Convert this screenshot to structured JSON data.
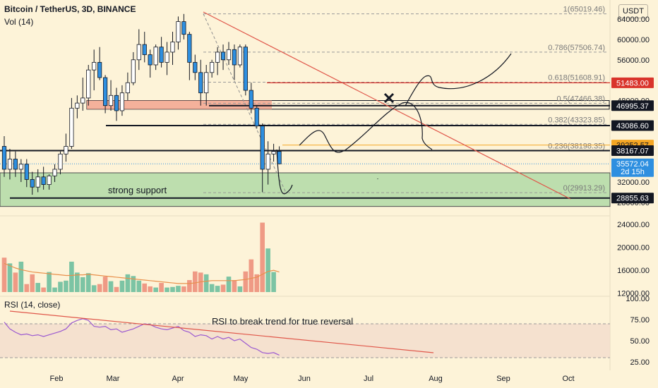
{
  "header": {
    "title": "Bitcoin / TetherUS, 3D, BINANCE",
    "vol_label": "Vol (14)",
    "rsi_label": "RSI (14, close)",
    "currency_button": "USDT"
  },
  "annotations": {
    "support_text": "strong support",
    "rsi_text": "RSI to break trend for true reversal"
  },
  "chart_data": [
    {
      "type": "candlestick",
      "title": "Bitcoin / TetherUS, 3D, BINANCE",
      "x_tick_labels": [
        "Feb",
        "Mar",
        "Apr",
        "May",
        "Jun",
        "Jul",
        "Aug",
        "Sep",
        "Oct"
      ],
      "y_tick_labels": [
        "64000.00",
        "60000.00",
        "56000.00",
        "48000.00",
        "32000.00",
        "28000.00"
      ],
      "price_labels": [
        {
          "value": 51483.0,
          "text": "51483.00",
          "color": "#d9342b",
          "text_color": "#ffffff"
        },
        {
          "value": 46995.37,
          "text": "46995.37",
          "color": "#131722",
          "text_color": "#ffffff"
        },
        {
          "value": 43086.6,
          "text": "43086.60",
          "color": "#131722",
          "text_color": "#ffffff"
        },
        {
          "value": 39252.57,
          "text": "39252.57",
          "color": "#f5a623",
          "text_color": "#131722"
        },
        {
          "value": 38167.07,
          "text": "38167.07",
          "color": "#131722",
          "text_color": "#ffffff"
        },
        {
          "value": 35572.04,
          "text": "35572.04",
          "color": "#2e8fe0",
          "text_color": "#ffffff",
          "sub": "2d 15h"
        },
        {
          "value": 28855.63,
          "text": "28855.63",
          "color": "#131722",
          "text_color": "#ffffff"
        }
      ],
      "fib_levels": [
        {
          "ratio": "1",
          "value": 65019.46,
          "label": "1(65019.46)"
        },
        {
          "ratio": "0.786",
          "value": 57506.74,
          "label": "0.786(57506.74)"
        },
        {
          "ratio": "0.618",
          "value": 51608.91,
          "label": "0.618(51608.91)"
        },
        {
          "ratio": "0.5",
          "value": 47466.38,
          "label": "0.5(47466.38)"
        },
        {
          "ratio": "0.382",
          "value": 43323.85,
          "label": "0.382(43323.85)"
        },
        {
          "ratio": "0.236",
          "value": 38198.35,
          "label": "0.236(38198.35)"
        },
        {
          "ratio": "0",
          "value": 29913.29,
          "label": "0(29913.29)"
        }
      ],
      "support_zone": [
        27200,
        33800
      ],
      "resistance_zone": [
        46300,
        48000
      ],
      "colors": {
        "up": "#ffffff",
        "down": "#2e8fe0",
        "outline": "#131722"
      },
      "candles": [
        {
          "o": 39000,
          "h": 41000,
          "l": 33000,
          "c": 34500
        },
        {
          "o": 34500,
          "h": 38500,
          "l": 32500,
          "c": 36500
        },
        {
          "o": 36500,
          "h": 38000,
          "l": 33000,
          "c": 34500
        },
        {
          "o": 34500,
          "h": 36500,
          "l": 32000,
          "c": 35500
        },
        {
          "o": 35500,
          "h": 36500,
          "l": 31000,
          "c": 32500
        },
        {
          "o": 32500,
          "h": 34000,
          "l": 29500,
          "c": 31000
        },
        {
          "o": 31000,
          "h": 34500,
          "l": 30000,
          "c": 33000
        },
        {
          "o": 33000,
          "h": 35000,
          "l": 30500,
          "c": 31500
        },
        {
          "o": 31500,
          "h": 33500,
          "l": 30500,
          "c": 33200
        },
        {
          "o": 33200,
          "h": 35500,
          "l": 32000,
          "c": 34500
        },
        {
          "o": 34500,
          "h": 38000,
          "l": 33500,
          "c": 37500
        },
        {
          "o": 37500,
          "h": 41500,
          "l": 36000,
          "c": 39000
        },
        {
          "o": 39000,
          "h": 48500,
          "l": 38500,
          "c": 46500
        },
        {
          "o": 46500,
          "h": 49000,
          "l": 44500,
          "c": 47500
        },
        {
          "o": 47500,
          "h": 52500,
          "l": 46000,
          "c": 48500
        },
        {
          "o": 48500,
          "h": 55000,
          "l": 47000,
          "c": 54000
        },
        {
          "o": 54000,
          "h": 58000,
          "l": 50000,
          "c": 55500
        },
        {
          "o": 55500,
          "h": 58500,
          "l": 52000,
          "c": 52500
        },
        {
          "o": 52500,
          "h": 53000,
          "l": 45500,
          "c": 47000
        },
        {
          "o": 47000,
          "h": 52000,
          "l": 46000,
          "c": 49000
        },
        {
          "o": 49000,
          "h": 50500,
          "l": 44000,
          "c": 46000
        },
        {
          "o": 46000,
          "h": 51000,
          "l": 45000,
          "c": 49500
        },
        {
          "o": 49500,
          "h": 53500,
          "l": 48000,
          "c": 51500
        },
        {
          "o": 51500,
          "h": 57500,
          "l": 51000,
          "c": 56000
        },
        {
          "o": 56000,
          "h": 62000,
          "l": 54000,
          "c": 59000
        },
        {
          "o": 59000,
          "h": 61500,
          "l": 55500,
          "c": 57000
        },
        {
          "o": 57000,
          "h": 58000,
          "l": 52500,
          "c": 55000
        },
        {
          "o": 55000,
          "h": 59000,
          "l": 54000,
          "c": 58500
        },
        {
          "o": 58500,
          "h": 60500,
          "l": 54500,
          "c": 55500
        },
        {
          "o": 55500,
          "h": 59500,
          "l": 53000,
          "c": 57500
        },
        {
          "o": 57500,
          "h": 61500,
          "l": 55000,
          "c": 59500
        },
        {
          "o": 59500,
          "h": 64500,
          "l": 58000,
          "c": 63500
        },
        {
          "o": 63500,
          "h": 65000,
          "l": 60000,
          "c": 61000
        },
        {
          "o": 61000,
          "h": 61500,
          "l": 52000,
          "c": 55500
        },
        {
          "o": 55500,
          "h": 57000,
          "l": 52000,
          "c": 53500
        },
        {
          "o": 53500,
          "h": 56000,
          "l": 47000,
          "c": 49500
        },
        {
          "o": 49500,
          "h": 55000,
          "l": 47000,
          "c": 53500
        },
        {
          "o": 53500,
          "h": 56000,
          "l": 52500,
          "c": 55500
        },
        {
          "o": 55500,
          "h": 58500,
          "l": 53000,
          "c": 57500
        },
        {
          "o": 57500,
          "h": 59000,
          "l": 54000,
          "c": 56000
        },
        {
          "o": 56000,
          "h": 59500,
          "l": 55000,
          "c": 58000
        },
        {
          "o": 58000,
          "h": 59000,
          "l": 52000,
          "c": 55000
        },
        {
          "o": 55000,
          "h": 59000,
          "l": 54500,
          "c": 58500
        },
        {
          "o": 58500,
          "h": 59000,
          "l": 49000,
          "c": 50000
        },
        {
          "o": 50000,
          "h": 51500,
          "l": 45500,
          "c": 46500
        },
        {
          "o": 46500,
          "h": 47000,
          "l": 42500,
          "c": 43000
        },
        {
          "o": 43000,
          "h": 43500,
          "l": 30000,
          "c": 34500
        },
        {
          "o": 34500,
          "h": 40000,
          "l": 31500,
          "c": 37500
        },
        {
          "o": 37500,
          "h": 39500,
          "l": 36000,
          "c": 38000
        },
        {
          "o": 38000,
          "h": 39000,
          "l": 35500,
          "c": 35572
        }
      ]
    },
    {
      "type": "bar",
      "title": "Vol (14)",
      "y_tick_labels": [
        "24000.00",
        "20000.00",
        "16000.00",
        "12000.00"
      ],
      "colors": {
        "up": "#7cc4a4",
        "down": "#ef9a85",
        "ma": "#e8904c"
      },
      "values": [
        18200,
        17200,
        15600,
        17500,
        13600,
        15300,
        13800,
        13000,
        15700,
        13000,
        14000,
        14200,
        17500,
        15600,
        14800,
        15500,
        13400,
        13600,
        14900,
        14100,
        13100,
        14200,
        15300,
        15000,
        14200,
        13700,
        13200,
        13000,
        13800,
        13000,
        13100,
        13300,
        13200,
        14300,
        15800,
        15600,
        15300,
        13600,
        13300,
        13500,
        14900,
        14300,
        13200,
        15800,
        17900,
        15300,
        24300,
        19800,
        15700,
        11900
      ],
      "ma": [
        17200,
        16800,
        16400,
        16100,
        15900,
        15700,
        15600,
        15500,
        15400,
        15300,
        15200,
        15100,
        15100,
        15200,
        15200,
        15300,
        15200,
        15100,
        15000,
        14900,
        14800,
        14700,
        14600,
        14500,
        14400,
        14300,
        14200,
        14100,
        14000,
        13900,
        13800,
        13700,
        13700,
        13700,
        13800,
        14000,
        14100,
        14200,
        14200,
        14200,
        14200,
        14200,
        14300,
        14400,
        14600,
        14800,
        15300,
        15800,
        16000,
        15700
      ]
    },
    {
      "type": "line",
      "title": "RSI (14, close)",
      "y_tick_labels": [
        "100.00",
        "75.00",
        "50.00",
        "25.00"
      ],
      "ylim": [
        20,
        100
      ],
      "band": [
        30,
        70
      ],
      "colors": {
        "line": "#9b59d0"
      },
      "values": [
        72,
        64,
        60,
        57,
        58,
        56,
        57,
        55,
        57,
        59,
        61,
        64,
        71,
        74,
        76,
        74,
        67,
        66,
        67,
        63,
        64,
        60,
        62,
        64,
        67,
        70,
        69,
        66,
        64,
        63,
        65,
        67,
        62,
        60,
        55,
        57,
        56,
        52,
        55,
        52,
        54,
        50,
        52,
        47,
        42,
        40,
        36,
        35,
        36,
        33
      ]
    }
  ]
}
